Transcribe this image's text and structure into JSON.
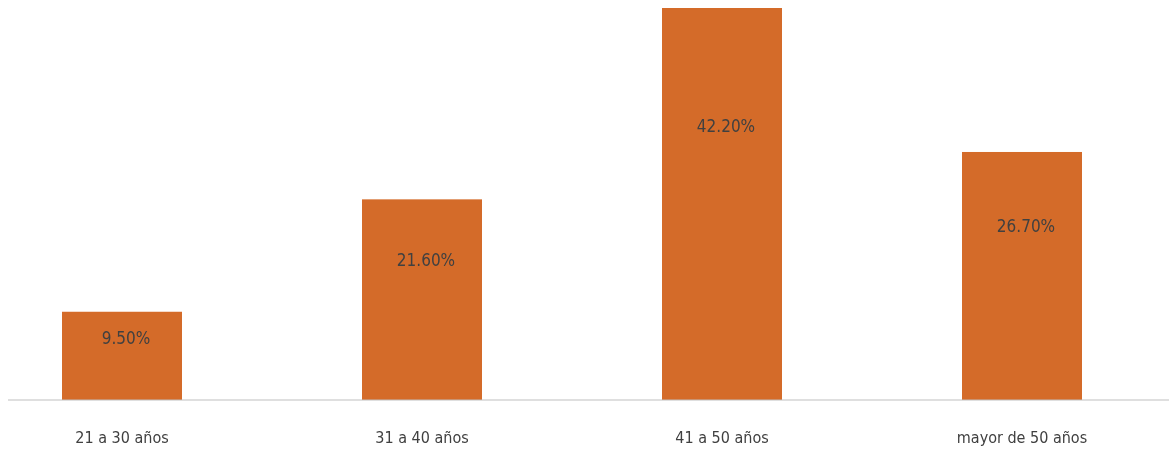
{
  "chart_data": {
    "type": "bar",
    "categories": [
      "21 a 30 años",
      "31 a 40 años",
      "41 a 50 años",
      "mayor de 50 años"
    ],
    "values": [
      9.5,
      21.6,
      42.2,
      26.7
    ],
    "value_labels": [
      "9.50%",
      "21.60%",
      "42.20%",
      "26.70%"
    ],
    "color": "#d46b29"
  }
}
